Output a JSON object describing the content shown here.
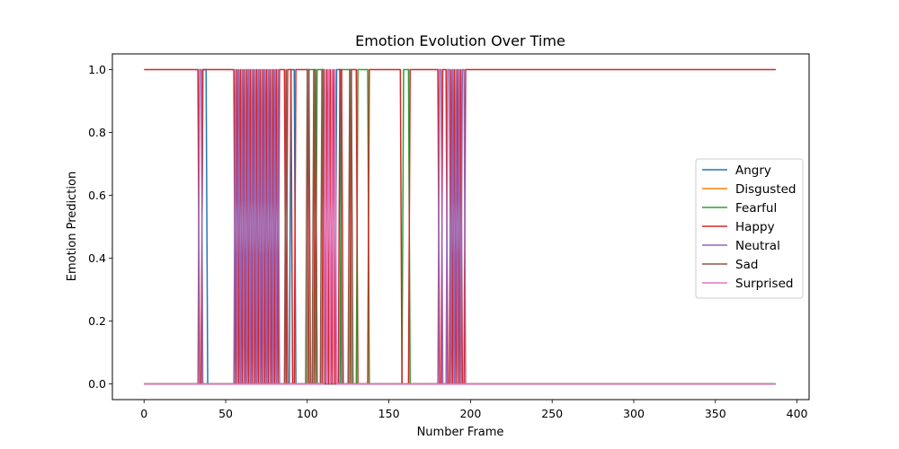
{
  "chart_data": {
    "type": "line",
    "title": "Emotion Evolution Over Time",
    "xlabel": "Number Frame",
    "ylabel": "Emotion Prediction",
    "xlim": [
      -19.4,
      407.4
    ],
    "ylim": [
      -0.05,
      1.05
    ],
    "xticks": [
      0,
      50,
      100,
      150,
      200,
      250,
      300,
      350,
      400
    ],
    "yticks": [
      0.0,
      0.2,
      0.4,
      0.6,
      0.8,
      1.0
    ],
    "xtick_labels": [
      "0",
      "50",
      "100",
      "150",
      "200",
      "250",
      "300",
      "350",
      "400"
    ],
    "ytick_labels": [
      "0.0",
      "0.2",
      "0.4",
      "0.6",
      "0.8",
      "1.0"
    ],
    "legend_position": "center-right",
    "grid": false,
    "n_frames": 388,
    "series": [
      {
        "name": "Angry",
        "color": "#1f77b4",
        "active_ranges": [
          [
            36,
            38
          ],
          [
            90,
            92
          ],
          [
            118,
            120
          ]
        ]
      },
      {
        "name": "Disgusted",
        "color": "#ff7f0e",
        "active_ranges": []
      },
      {
        "name": "Fearful",
        "color": "#2ca02c",
        "active_ranges": [
          [
            101,
            104
          ],
          [
            106,
            109
          ],
          [
            121,
            126
          ],
          [
            131,
            137
          ],
          [
            159,
            162
          ]
        ]
      },
      {
        "name": "Happy",
        "color": "#d62728",
        "active_ranges": [
          [
            0,
            33
          ],
          [
            36,
            55
          ],
          [
            57,
            57
          ],
          [
            59,
            59
          ],
          [
            61,
            61
          ],
          [
            63,
            63
          ],
          [
            65,
            65
          ],
          [
            67,
            67
          ],
          [
            69,
            69
          ],
          [
            71,
            71
          ],
          [
            73,
            73
          ],
          [
            75,
            75
          ],
          [
            77,
            77
          ],
          [
            79,
            79
          ],
          [
            81,
            81
          ],
          [
            83,
            86
          ],
          [
            88,
            90
          ],
          [
            93,
            100
          ],
          [
            105,
            105
          ],
          [
            110,
            110
          ],
          [
            112,
            112
          ],
          [
            114,
            114
          ],
          [
            116,
            116
          ],
          [
            120,
            121
          ],
          [
            127,
            130
          ],
          [
            138,
            157
          ],
          [
            163,
            180
          ],
          [
            183,
            185
          ],
          [
            188,
            188
          ],
          [
            190,
            190
          ],
          [
            192,
            192
          ],
          [
            194,
            194
          ],
          [
            197,
            387
          ]
        ]
      },
      {
        "name": "Neutral",
        "color": "#9467bd",
        "active_ranges": [
          [
            34,
            35
          ],
          [
            56,
            56
          ],
          [
            58,
            58
          ],
          [
            60,
            60
          ],
          [
            62,
            62
          ],
          [
            64,
            64
          ],
          [
            66,
            66
          ],
          [
            68,
            68
          ],
          [
            70,
            70
          ],
          [
            72,
            72
          ],
          [
            74,
            74
          ],
          [
            76,
            76
          ],
          [
            78,
            78
          ],
          [
            80,
            80
          ],
          [
            82,
            82
          ],
          [
            181,
            182
          ],
          [
            186,
            187
          ],
          [
            189,
            189
          ],
          [
            191,
            191
          ],
          [
            193,
            193
          ],
          [
            195,
            196
          ]
        ]
      },
      {
        "name": "Sad",
        "color": "#8c564b",
        "active_ranges": [
          [
            87,
            87
          ],
          [
            100,
            101
          ],
          [
            104,
            105
          ],
          [
            109,
            110
          ],
          [
            126,
            127
          ]
        ]
      },
      {
        "name": "Surprised",
        "color": "#e377c2",
        "active_ranges": [
          [
            111,
            111
          ],
          [
            113,
            113
          ],
          [
            115,
            115
          ],
          [
            117,
            117
          ]
        ]
      }
    ]
  }
}
